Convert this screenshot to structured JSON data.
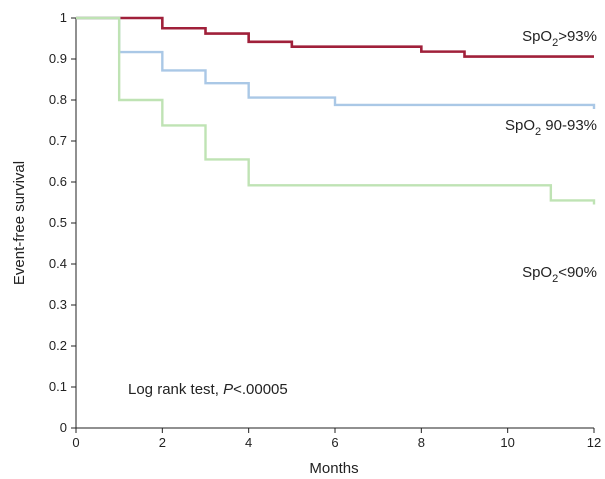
{
  "chart_data": {
    "type": "line",
    "step": true,
    "xlabel": "Months",
    "ylabel": "Event-free survival",
    "xlim": [
      0,
      12
    ],
    "ylim": [
      0,
      1
    ],
    "x_ticks": [
      0,
      2,
      4,
      6,
      8,
      10,
      12
    ],
    "y_ticks": [
      0,
      0.1,
      0.2,
      0.3,
      0.4,
      0.5,
      0.6,
      0.7,
      0.8,
      0.9,
      1
    ],
    "x_tick_labels": [
      "0",
      "2",
      "4",
      "6",
      "8",
      "10",
      "12"
    ],
    "y_tick_labels": [
      "0",
      "0.1",
      "0.2",
      "0.3",
      "0.4",
      "0.5",
      "0.6",
      "0.7",
      "0.8",
      "0.9",
      "1"
    ],
    "grid": false,
    "annotation": {
      "prefix": "Log rank test, ",
      "p": "P",
      "suffix": "<.00005"
    },
    "series": [
      {
        "name": "SpO2>93%",
        "label_main": "SpO",
        "label_sub": "2",
        "label_rest": ">93%",
        "color": "#a0203a",
        "x": [
          0,
          1,
          2,
          3,
          4,
          5,
          6,
          8,
          9,
          12
        ],
        "y": [
          1.0,
          1.0,
          0.975,
          0.962,
          0.942,
          0.93,
          0.93,
          0.918,
          0.906,
          0.906
        ]
      },
      {
        "name": "SpO2 90-93%",
        "label_main": "SpO",
        "label_sub": "2",
        "label_rest": " 90-93%",
        "color": "#aac8e6",
        "x": [
          0,
          1,
          2,
          3,
          4,
          6,
          12
        ],
        "y": [
          1.0,
          0.917,
          0.872,
          0.841,
          0.806,
          0.788,
          0.778
        ]
      },
      {
        "name": "SpO2<90%",
        "label_main": "SpO",
        "label_sub": "2",
        "label_rest": "<90%",
        "color": "#bfe3b4",
        "x": [
          0,
          1,
          2,
          3,
          4,
          11,
          12
        ],
        "y": [
          1.0,
          0.8,
          0.738,
          0.655,
          0.592,
          0.555,
          0.545
        ]
      }
    ]
  }
}
